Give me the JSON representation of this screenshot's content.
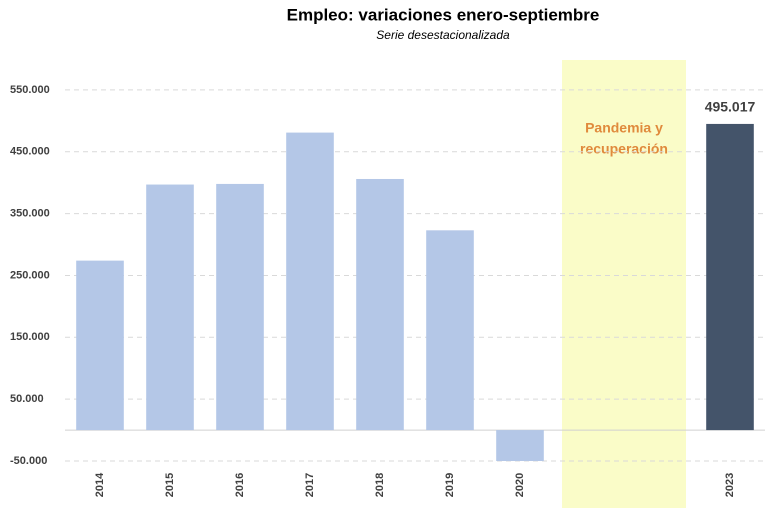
{
  "chart_data": {
    "type": "bar",
    "title": "Empleo: variaciones enero-septiembre",
    "subtitle": "Serie desestacionalizada",
    "annotation": [
      "Pandemia y",
      "recuperación"
    ],
    "categories": [
      "2014",
      "2015",
      "2016",
      "2017",
      "2018",
      "2019",
      "2020",
      null,
      null,
      "2023"
    ],
    "values": [
      274000,
      397000,
      398000,
      481000,
      406000,
      323000,
      -50000,
      null,
      null,
      495017
    ],
    "value_labels": [
      null,
      null,
      null,
      null,
      null,
      null,
      null,
      null,
      null,
      "495.017"
    ],
    "colors": [
      "#b4c7e7",
      "#b4c7e7",
      "#b4c7e7",
      "#b4c7e7",
      "#b4c7e7",
      "#b4c7e7",
      "#b4c7e7",
      null,
      null,
      "#44546a"
    ],
    "ylim": [
      -50000,
      600000
    ],
    "yticks": [
      {
        "value": -50000,
        "label": "-50.000"
      },
      {
        "value": 50000,
        "label": "50.000"
      },
      {
        "value": 150000,
        "label": "150.000"
      },
      {
        "value": 250000,
        "label": "250.000"
      },
      {
        "value": 350000,
        "label": "350.000"
      },
      {
        "value": 450000,
        "label": "450.000"
      },
      {
        "value": 550000,
        "label": "550.000"
      }
    ],
    "grid": true
  }
}
